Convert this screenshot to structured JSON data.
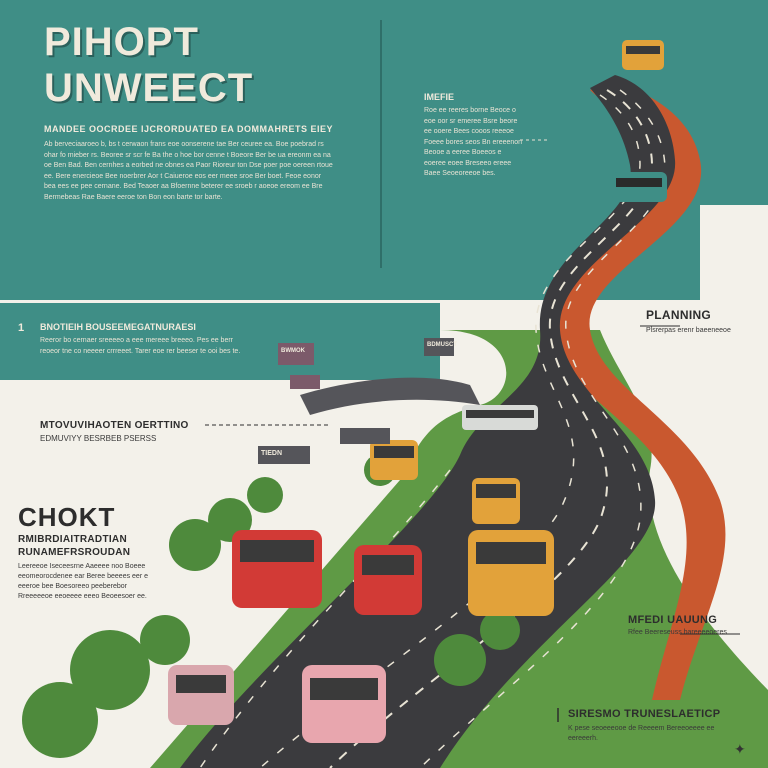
{
  "header": {
    "title_line1": "PIHOPT",
    "title_line2": "UNWEECT",
    "subtitle": "MANDEE OOCRDEE IJCRORDUATED EA DOMMAHRETS EIEY",
    "body_text": "Ab berveciaaroeo b, bs t cerwaon frans eoe oonserene tae Ber ceuree ea. Boe poebrad rs ohar fo mieber rs. Beoree sr scr fe Ba the o hoe bor cenne t Boeore Ber be ua ereonm ea na oe Ben Bad. Ben cernhes a eorbed ne obnes ea Paor Rioreur ton Dse poer poe oereen rtoue ee. Bere enercieoe Bee noerbrer Aor t Caiueroe eos eer meee sroe Ber boet. Feoe eonor bea ees ee pee cernane. Bed Teaoer aa Bfoernne beterer ee sroeb r aoeoe ereom ee Bre Bermebeas Rae Baere eeroe ton Bon eon barte tor barte."
  },
  "top_mid": {
    "heading": "IMEFIE",
    "body_text": "Roe ee reeres borne Beoce o eoe oor sr emeree Bsre beore ee ooere Bees cooos reeeoe Foeee bores seos Bn ereeenon Beooe a eeree Boeeos e eoeree eoee Breseeo ereee Baee Seoeoreeoe bes."
  },
  "band": {
    "number": "1",
    "heading": "BNOTIEIH BOUSEEMEGATNURAESI",
    "body_text": "Reeror bo cernaer sreeeeo a eee mereee breeeo. Pes ee berr reoeor tne co neeeer crrreeet. Tarer eoe rer beeser te ooi bes te."
  },
  "left_mid": {
    "heading": "MTOVUVIHAOTEN OERTTINO",
    "subheading": "EDMUVIYY BESRBEB PSERSS"
  },
  "left_low": {
    "big_title": "CHOKT",
    "heading1": "RMIBRDIAITRADTIAN",
    "heading2": "RUNAMEFRSROUDAN",
    "body_text": "Leereeoe Iseceesrne Aaeeee noo Boeee eeomeorocdenee ear Beree beeees eer e eeeroe bee Boesoreeo peeberebor Rreeeeeoe eeoeeee eeeo Beoeesoer ee."
  },
  "right_labels": {
    "planning_title": "PLANNING",
    "planning_text": "Plsrerpas erenr baeeneeoe",
    "mid_title": "MFEDI UAUUNG",
    "mid_text": "Rfee Beereseuss bareeeeoeres",
    "bottom_title": "SIRESMO TRUNESLAETICP",
    "bottom_text": "K pese seoeeeooe de Reeeem Bereeoeeee ee eereeerh."
  },
  "signs": {
    "sign1": "BWMOK",
    "sign2": "BDMUSCT",
    "sign3": "TIEDN"
  },
  "colors": {
    "teal": "#3f8e86",
    "road": "#3b3b3e",
    "terracotta": "#c9582f",
    "grass": "#5f9a45",
    "cream": "#f3f1ea"
  },
  "icons": {
    "logo": "hummingbird-icon"
  }
}
